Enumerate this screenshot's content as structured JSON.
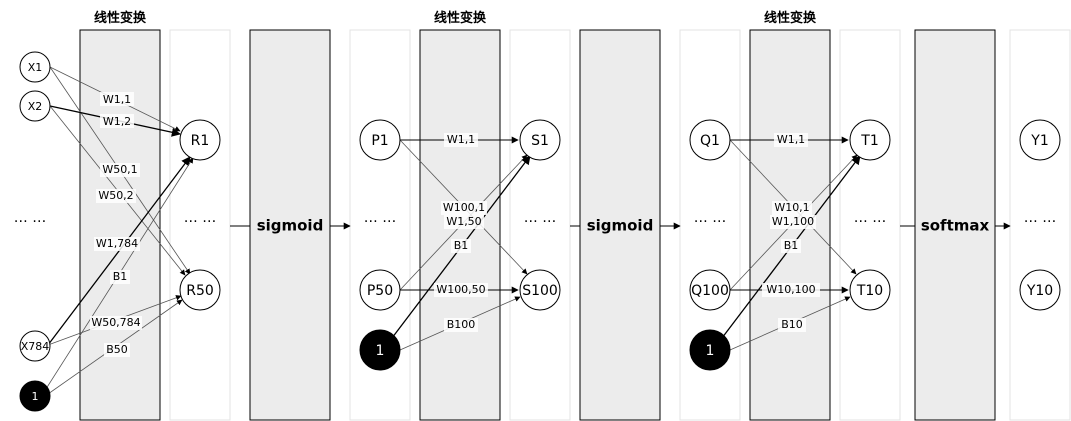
{
  "colors": {
    "panel_fill": "#ececec",
    "panel_stroke": "#000000",
    "ghost_stroke": "#e3e3e3",
    "node_black": "#000000"
  },
  "titles": [
    "线性变换",
    "线性变换",
    "线性变换"
  ],
  "functions": [
    "sigmoid",
    "sigmoid",
    "softmax"
  ],
  "ellipsis": "… …",
  "layer1": {
    "inputs": [
      "X1",
      "X2",
      "X784"
    ],
    "bias": "1",
    "outputs": [
      "R1",
      "R50"
    ],
    "weights": [
      "W1,1",
      "W1,2",
      "W50,1",
      "W50,2",
      "W1,784",
      "W50,784"
    ],
    "biases": [
      "B1",
      "B50"
    ]
  },
  "layer2": {
    "inputs": [
      "P1",
      "P50"
    ],
    "bias": "1",
    "outputs": [
      "S1",
      "S100"
    ],
    "weights": [
      "W1,1",
      "W100,1",
      "W1,50",
      "W100,50"
    ],
    "biases": [
      "B1",
      "B100"
    ]
  },
  "layer3": {
    "inputs": [
      "Q1",
      "Q100"
    ],
    "bias": "1",
    "outputs": [
      "T1",
      "T10"
    ],
    "weights": [
      "W1,1",
      "W10,1",
      "W1,100",
      "W10,100"
    ],
    "biases": [
      "B1",
      "B10"
    ]
  },
  "final_outputs": [
    "Y1",
    "Y10"
  ]
}
